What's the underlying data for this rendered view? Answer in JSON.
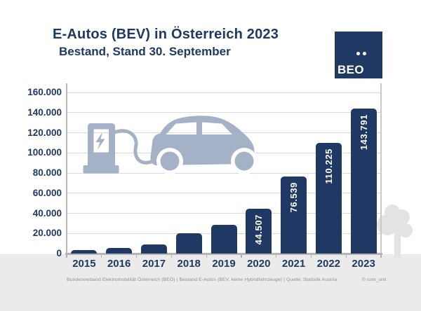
{
  "header": {
    "title": "E-Autos (BEV) in Österreich 2023",
    "subtitle": "Bestand, Stand 30. September"
  },
  "logo": {
    "text": "BEO",
    "umlaut_dots": 2
  },
  "chart_data": {
    "type": "bar",
    "title": "E-Autos (BEV) in Österreich 2023",
    "subtitle": "Bestand, Stand 30. September",
    "categories": [
      "2015",
      "2016",
      "2017",
      "2018",
      "2019",
      "2020",
      "2021",
      "2022",
      "2023"
    ],
    "values": [
      3400,
      5300,
      8800,
      20400,
      28500,
      44507,
      76539,
      110225,
      143791
    ],
    "bar_value_labels": [
      "",
      "",
      "",
      "",
      "",
      "44.507",
      "76.539",
      "110.225",
      "143.791"
    ],
    "xlabel": "",
    "ylabel": "",
    "ylim": [
      0,
      160000
    ],
    "ytick_interval": 20000,
    "ytick_labels": [
      "0",
      "20.000",
      "40.000",
      "60.000",
      "80.000",
      "100.000",
      "120.000",
      "140.000",
      "160.000"
    ],
    "grid": true,
    "legend": false,
    "bar_color": "#1f3864",
    "value_label_color": "#ffffff"
  },
  "footer": {
    "left": "Bundesverband Elektromobilität Österreich (BEÖ) | Bestand E-Autos (BEV, keine Hybridfahrzeuge) | Quelle: Statistik Austria",
    "right": "© com_unit"
  },
  "colors": {
    "navy": "#1f3864",
    "illustration": "#a4b1c7",
    "gridline": "#d9d9d9",
    "axis": "#b5b5b5",
    "strip": "#ebebeb",
    "tree": "#e3e3e3",
    "footer_text": "#8f8f8f"
  }
}
